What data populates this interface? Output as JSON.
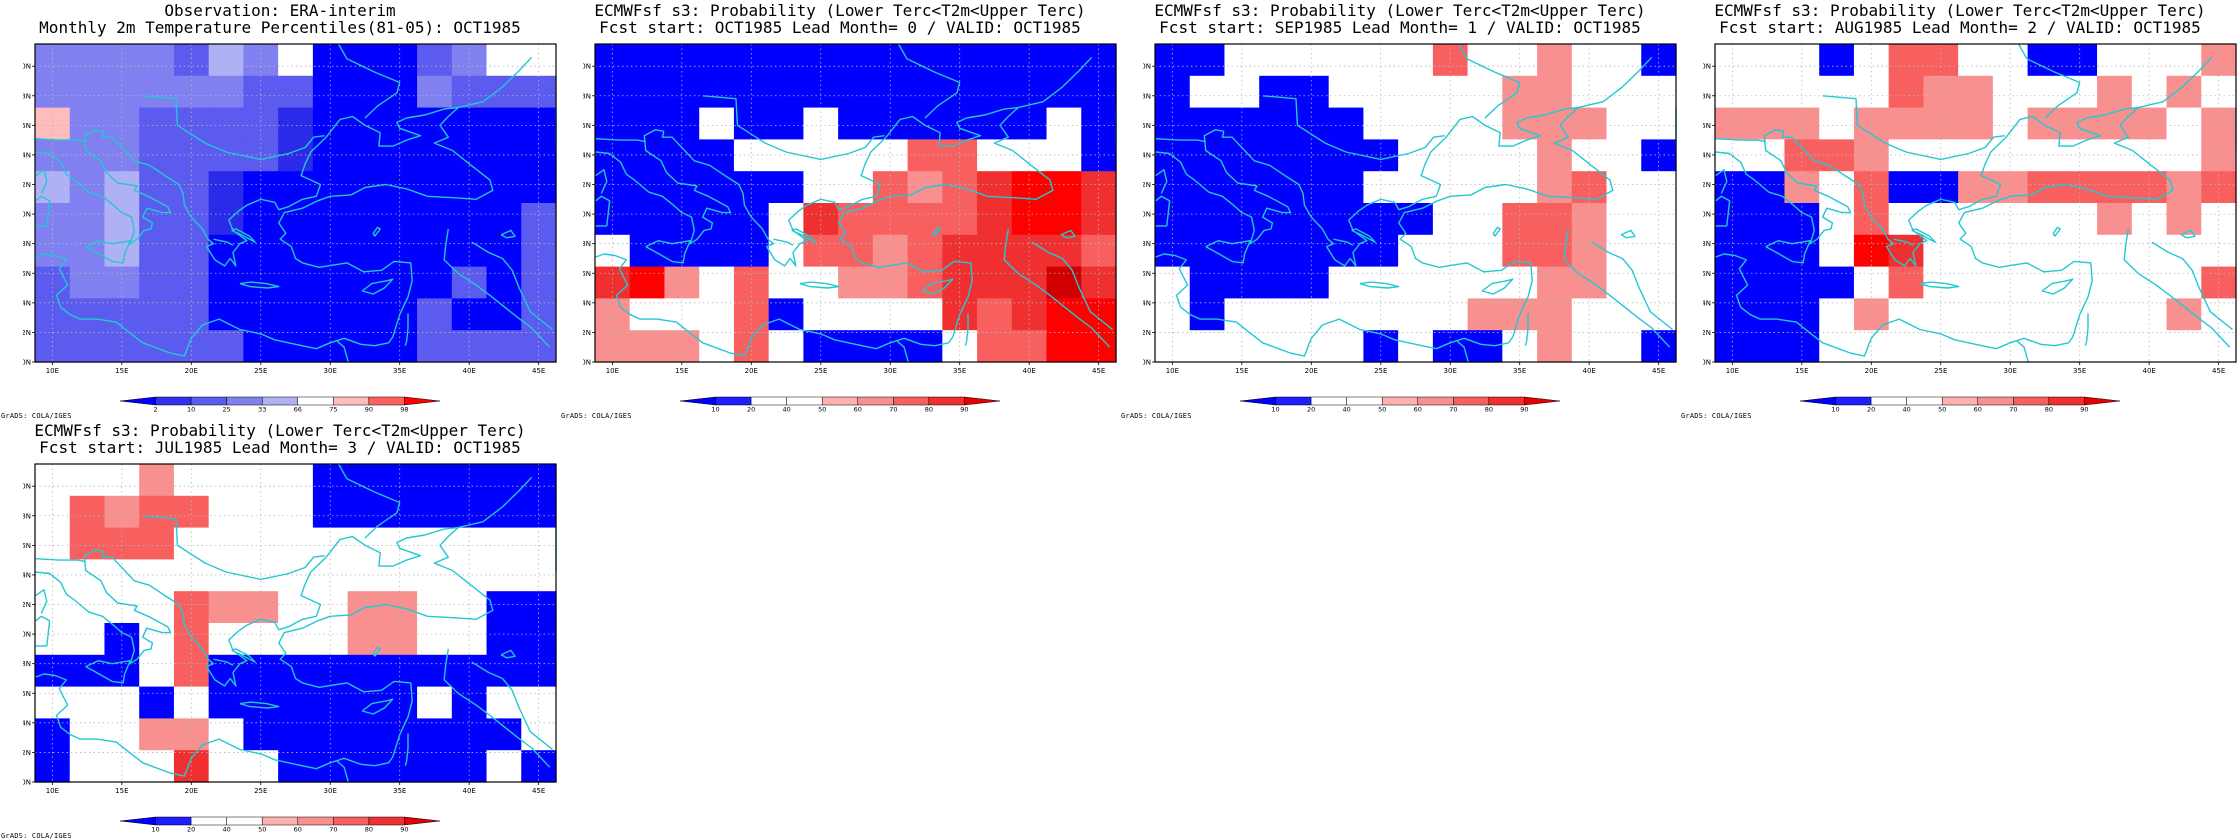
{
  "credit": "GrADS: COLA/IGES",
  "grid": {
    "lon": [
      8.75,
      46.25
    ],
    "lat": [
      30,
      51.5
    ],
    "ncols": 15,
    "nrows": 10
  },
  "lon_ticks": [
    "10E",
    "15E",
    "20E",
    "25E",
    "30E",
    "35E",
    "40E",
    "45E"
  ],
  "lat_ticks": [
    "30N",
    "32N",
    "34N",
    "36N",
    "38N",
    "40N",
    "42N",
    "44N",
    "46N",
    "48N",
    "50N"
  ],
  "colors": {
    "coast": "#22c8d2",
    "grid": "#b8b8b8",
    "obs_classes": [
      "#0000ff",
      "#2a2ae8",
      "#5b5bf0",
      "#8080f0",
      "#b0b0f4",
      "#ffffff",
      "#ffbcbc",
      "#ff7070",
      "#ff3030",
      "#e00000",
      "#b00000"
    ],
    "prob_classes": [
      "#0000ff",
      "#1e1eff",
      "#ffffff",
      "#ffffff",
      "#ffb0b0",
      "#f89090",
      "#f86060",
      "#f03030",
      "#ff0000",
      "#d00000"
    ]
  },
  "panels": [
    {
      "id": "obs",
      "title_line1": "Observation: ERA-interim",
      "title_line2": "Monthly 2m Temperature Percentiles(81-05): OCT1985",
      "colorbar": {
        "labels": [
          "2",
          "10",
          "25",
          "33",
          "66",
          "75",
          "90",
          "98"
        ],
        "colors": [
          "#0000ff",
          "#3030ee",
          "#5b5bf0",
          "#8080f0",
          "#b0b0f4",
          "#ffffff",
          "#ffbcbc",
          "#ff6060",
          "#ff0000"
        ]
      },
      "values": [
        [
          3,
          3,
          3,
          3,
          2,
          4,
          3,
          5,
          0,
          0,
          0,
          2,
          3,
          5,
          5
        ],
        [
          3,
          3,
          3,
          3,
          3,
          3,
          2,
          2,
          0,
          0,
          0,
          3,
          2,
          2,
          2
        ],
        [
          6,
          3,
          3,
          2,
          2,
          2,
          2,
          1,
          0,
          0,
          0,
          0,
          0,
          0,
          0
        ],
        [
          3,
          3,
          3,
          2,
          2,
          2,
          2,
          1,
          0,
          0,
          0,
          0,
          0,
          0,
          0
        ],
        [
          4,
          3,
          4,
          2,
          2,
          1,
          0,
          0,
          0,
          0,
          0,
          0,
          0,
          0,
          0
        ],
        [
          3,
          3,
          4,
          2,
          2,
          1,
          0,
          0,
          0,
          0,
          0,
          0,
          0,
          0,
          2
        ],
        [
          3,
          3,
          4,
          2,
          2,
          0,
          0,
          0,
          0,
          0,
          0,
          0,
          0,
          0,
          2
        ],
        [
          2,
          3,
          3,
          2,
          2,
          0,
          0,
          0,
          0,
          0,
          0,
          0,
          2,
          0,
          2
        ],
        [
          2,
          2,
          2,
          2,
          2,
          0,
          0,
          0,
          0,
          0,
          0,
          2,
          0,
          0,
          2
        ],
        [
          2,
          2,
          2,
          2,
          2,
          2,
          0,
          0,
          0,
          0,
          0,
          2,
          2,
          2,
          2
        ]
      ]
    },
    {
      "id": "lead0",
      "title_line1": "ECMWFsf s3: Probability (Lower Terc<T2m<Upper Terc)",
      "title_line2": "Fcst start: OCT1985  Lead Month= 0 / VALID: OCT1985",
      "colorbar": {
        "labels": [
          "10",
          "20",
          "40",
          "50",
          "60",
          "70",
          "80",
          "90"
        ],
        "colors": [
          "#0000ff",
          "#1e1eff",
          "#ffffff",
          "#ffffff",
          "#ffb0b0",
          "#f89090",
          "#f86060",
          "#f03030",
          "#e80000"
        ]
      },
      "values": [
        [
          0,
          0,
          0,
          0,
          0,
          0,
          0,
          0,
          0,
          0,
          0,
          0,
          0,
          0,
          0
        ],
        [
          0,
          0,
          0,
          0,
          0,
          0,
          0,
          0,
          0,
          0,
          0,
          0,
          0,
          0,
          0
        ],
        [
          0,
          0,
          0,
          2,
          0,
          0,
          2,
          0,
          0,
          0,
          0,
          0,
          0,
          2,
          0
        ],
        [
          0,
          0,
          0,
          0,
          2,
          2,
          2,
          2,
          2,
          6,
          6,
          2,
          2,
          2,
          0
        ],
        [
          0,
          0,
          0,
          0,
          0,
          0,
          2,
          2,
          6,
          5,
          6,
          7,
          8,
          8,
          7
        ],
        [
          0,
          0,
          0,
          0,
          0,
          2,
          7,
          6,
          6,
          6,
          6,
          7,
          8,
          8,
          7
        ],
        [
          2,
          0,
          0,
          0,
          0,
          2,
          6,
          6,
          5,
          6,
          7,
          7,
          7,
          7,
          6
        ],
        [
          7,
          8,
          5,
          2,
          6,
          2,
          2,
          5,
          5,
          6,
          7,
          7,
          7,
          9,
          7
        ],
        [
          5,
          2,
          2,
          2,
          6,
          0,
          2,
          2,
          2,
          2,
          7,
          6,
          7,
          8,
          8
        ],
        [
          5,
          5,
          5,
          2,
          6,
          2,
          0,
          0,
          0,
          0,
          2,
          6,
          6,
          8,
          8
        ]
      ]
    },
    {
      "id": "lead1",
      "title_line1": "ECMWFsf s3: Probability (Lower Terc<T2m<Upper Terc)",
      "title_line2": "Fcst start: SEP1985  Lead Month= 1 / VALID: OCT1985",
      "colorbar": {
        "labels": [
          "10",
          "20",
          "40",
          "50",
          "60",
          "70",
          "80",
          "90"
        ],
        "colors": [
          "#0000ff",
          "#1e1eff",
          "#ffffff",
          "#ffffff",
          "#ffb0b0",
          "#f89090",
          "#f86060",
          "#f03030",
          "#e80000"
        ]
      },
      "values": [
        [
          0,
          0,
          2,
          2,
          2,
          2,
          2,
          2,
          6,
          2,
          2,
          5,
          2,
          2,
          0
        ],
        [
          0,
          2,
          2,
          0,
          0,
          2,
          2,
          2,
          2,
          2,
          5,
          5,
          2,
          2,
          2
        ],
        [
          0,
          0,
          0,
          0,
          0,
          0,
          2,
          2,
          2,
          2,
          5,
          5,
          5,
          2,
          2
        ],
        [
          0,
          0,
          0,
          0,
          0,
          0,
          0,
          2,
          2,
          2,
          2,
          5,
          2,
          2,
          0
        ],
        [
          0,
          0,
          0,
          0,
          0,
          0,
          2,
          2,
          2,
          2,
          2,
          5,
          6,
          2,
          2
        ],
        [
          0,
          0,
          0,
          0,
          0,
          0,
          0,
          0,
          2,
          2,
          6,
          6,
          5,
          2,
          2
        ],
        [
          0,
          0,
          0,
          0,
          0,
          0,
          0,
          2,
          2,
          2,
          6,
          6,
          5,
          2,
          2
        ],
        [
          2,
          0,
          0,
          0,
          0,
          2,
          2,
          2,
          2,
          2,
          2,
          5,
          5,
          2,
          2
        ],
        [
          2,
          0,
          2,
          2,
          2,
          2,
          2,
          2,
          2,
          5,
          5,
          5,
          2,
          2,
          2
        ],
        [
          2,
          2,
          2,
          2,
          2,
          2,
          0,
          2,
          0,
          0,
          2,
          5,
          2,
          2,
          0
        ]
      ]
    },
    {
      "id": "lead2",
      "title_line1": "ECMWFsf s3: Probability (Lower Terc<T2m<Upper Terc)",
      "title_line2": "Fcst start: AUG1985  Lead Month= 2 / VALID: OCT1985",
      "colorbar": {
        "labels": [
          "10",
          "20",
          "40",
          "50",
          "60",
          "70",
          "80",
          "90"
        ],
        "colors": [
          "#0000ff",
          "#1e1eff",
          "#ffffff",
          "#ffffff",
          "#ffb0b0",
          "#f89090",
          "#f86060",
          "#f03030",
          "#e80000"
        ]
      },
      "values": [
        [
          2,
          2,
          2,
          0,
          2,
          6,
          6,
          2,
          2,
          0,
          0,
          2,
          2,
          2,
          5
        ],
        [
          2,
          2,
          2,
          2,
          2,
          6,
          5,
          5,
          2,
          2,
          2,
          5,
          2,
          5,
          2
        ],
        [
          5,
          5,
          5,
          2,
          5,
          5,
          5,
          5,
          2,
          5,
          5,
          5,
          5,
          2,
          5
        ],
        [
          2,
          2,
          6,
          6,
          5,
          2,
          2,
          2,
          2,
          2,
          2,
          2,
          2,
          2,
          5
        ],
        [
          0,
          0,
          5,
          2,
          6,
          0,
          0,
          5,
          5,
          6,
          6,
          6,
          6,
          5,
          6
        ],
        [
          0,
          0,
          0,
          2,
          6,
          2,
          2,
          2,
          2,
          2,
          2,
          5,
          2,
          5,
          2
        ],
        [
          0,
          0,
          0,
          2,
          8,
          7,
          2,
          2,
          2,
          2,
          2,
          2,
          2,
          2,
          2
        ],
        [
          0,
          0,
          0,
          0,
          2,
          6,
          2,
          2,
          2,
          2,
          2,
          2,
          2,
          2,
          6
        ],
        [
          0,
          0,
          0,
          2,
          5,
          2,
          2,
          2,
          2,
          2,
          2,
          2,
          2,
          5,
          2
        ],
        [
          0,
          0,
          0,
          2,
          2,
          2,
          2,
          2,
          2,
          2,
          2,
          2,
          2,
          2,
          2
        ]
      ]
    },
    {
      "id": "lead3",
      "title_line1": "ECMWFsf s3: Probability (Lower Terc<T2m<Upper Terc)",
      "title_line2": "Fcst start: JUL1985  Lead Month= 3 / VALID: OCT1985",
      "colorbar": {
        "labels": [
          "10",
          "20",
          "40",
          "50",
          "60",
          "70",
          "80",
          "90"
        ],
        "colors": [
          "#0000ff",
          "#1e1eff",
          "#ffffff",
          "#ffffff",
          "#ffb0b0",
          "#f89090",
          "#f86060",
          "#f03030",
          "#e80000"
        ]
      },
      "values": [
        [
          2,
          2,
          2,
          5,
          2,
          2,
          2,
          2,
          0,
          0,
          0,
          0,
          0,
          0,
          0
        ],
        [
          2,
          6,
          5,
          6,
          6,
          2,
          2,
          2,
          0,
          0,
          0,
          0,
          0,
          0,
          0
        ],
        [
          2,
          6,
          6,
          6,
          2,
          2,
          2,
          2,
          2,
          2,
          2,
          2,
          2,
          2,
          2
        ],
        [
          2,
          2,
          2,
          2,
          2,
          2,
          2,
          2,
          2,
          2,
          2,
          2,
          2,
          2,
          2
        ],
        [
          2,
          2,
          2,
          2,
          6,
          5,
          5,
          2,
          2,
          5,
          5,
          2,
          2,
          0,
          0
        ],
        [
          2,
          2,
          0,
          2,
          6,
          2,
          2,
          2,
          2,
          5,
          5,
          2,
          2,
          0,
          0
        ],
        [
          0,
          0,
          0,
          2,
          6,
          0,
          0,
          0,
          0,
          0,
          0,
          0,
          0,
          0,
          0
        ],
        [
          2,
          2,
          2,
          0,
          2,
          0,
          0,
          0,
          0,
          0,
          0,
          2,
          0,
          2,
          2
        ],
        [
          0,
          2,
          2,
          5,
          5,
          2,
          0,
          0,
          0,
          0,
          0,
          0,
          0,
          0,
          2
        ],
        [
          0,
          2,
          2,
          2,
          7,
          2,
          2,
          0,
          0,
          0,
          0,
          0,
          0,
          2,
          0
        ]
      ]
    }
  ]
}
